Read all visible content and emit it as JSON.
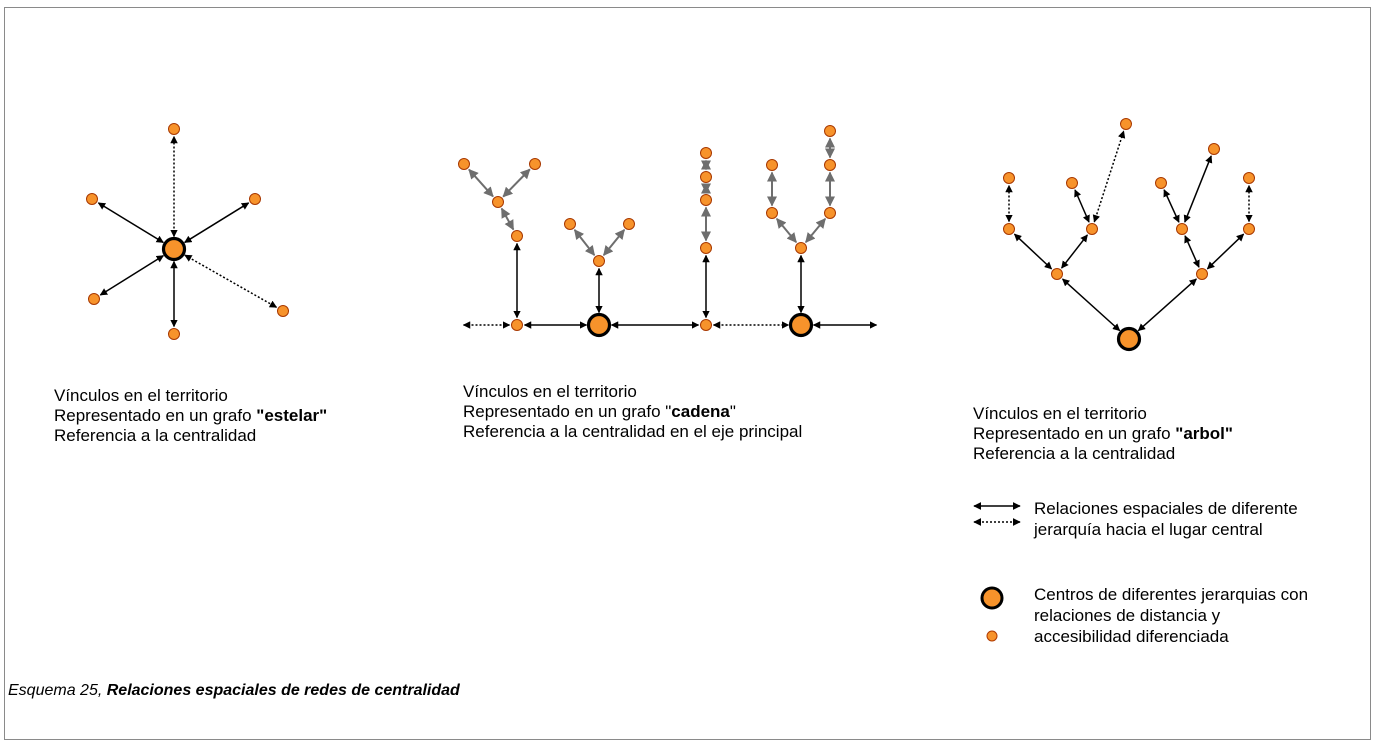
{
  "colors": {
    "node_fill": "#f7932b",
    "node_stroke": "#000000",
    "arrow_solid": "#000000",
    "arrow_grey": "#6e6e6e"
  },
  "captions": {
    "estelar": {
      "line1": "Vínculos en el territorio",
      "line2_prefix": "Representado en un grafo ",
      "line2_bold": "\"estelar\"",
      "line3": "Referencia a la centralidad"
    },
    "cadena": {
      "line1": "Vínculos en el territorio",
      "line2_prefix": "Representado en un grafo \"",
      "line2_bold": "cadena",
      "line2_suffix": "\"",
      "line3": "Referencia a la centralidad en el eje principal"
    },
    "arbol": {
      "line1": "Vínculos en el territorio",
      "line2_prefix": "Representado en un grafo ",
      "line2_bold": "\"arbol\"",
      "line3": "Referencia a la centralidad"
    }
  },
  "legend": {
    "relations": "Relaciones espaciales de diferente jerarquía hacia el lugar central",
    "centers": "Centros de diferentes jerarquias con relaciones de distancia y accesibilidad diferenciada"
  },
  "figure_caption": {
    "prefix": "Esquema 25, ",
    "bold": "Relaciones espaciales de redes de centralidad"
  }
}
